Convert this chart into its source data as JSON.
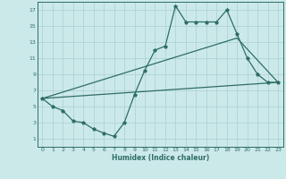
{
  "title": "",
  "xlabel": "Humidex (Indice chaleur)",
  "bg_color": "#cce9ea",
  "grid_color": "#aacfd0",
  "line_color": "#2e6e65",
  "xlim": [
    -0.5,
    23.5
  ],
  "ylim": [
    0,
    18
  ],
  "xticks": [
    0,
    1,
    2,
    3,
    4,
    5,
    6,
    7,
    8,
    9,
    10,
    11,
    12,
    13,
    14,
    15,
    16,
    17,
    18,
    19,
    20,
    21,
    22,
    23
  ],
  "yticks": [
    1,
    3,
    5,
    7,
    9,
    11,
    13,
    15,
    17
  ],
  "line1_x": [
    0,
    1,
    2,
    3,
    4,
    5,
    6,
    7,
    8,
    9,
    10,
    11,
    12,
    13,
    14,
    15,
    16,
    17,
    18,
    19,
    20,
    21,
    22,
    23
  ],
  "line1_y": [
    6,
    5,
    4.5,
    3.2,
    3,
    2.2,
    1.7,
    1.3,
    3,
    6.5,
    9.5,
    12,
    12.5,
    17.5,
    15.5,
    15.5,
    15.5,
    15.5,
    17,
    14,
    11,
    9,
    8,
    8
  ],
  "line2_x": [
    0,
    23
  ],
  "line2_y": [
    6,
    8
  ],
  "line3_x": [
    0,
    19,
    23
  ],
  "line3_y": [
    6,
    13.5,
    8
  ]
}
